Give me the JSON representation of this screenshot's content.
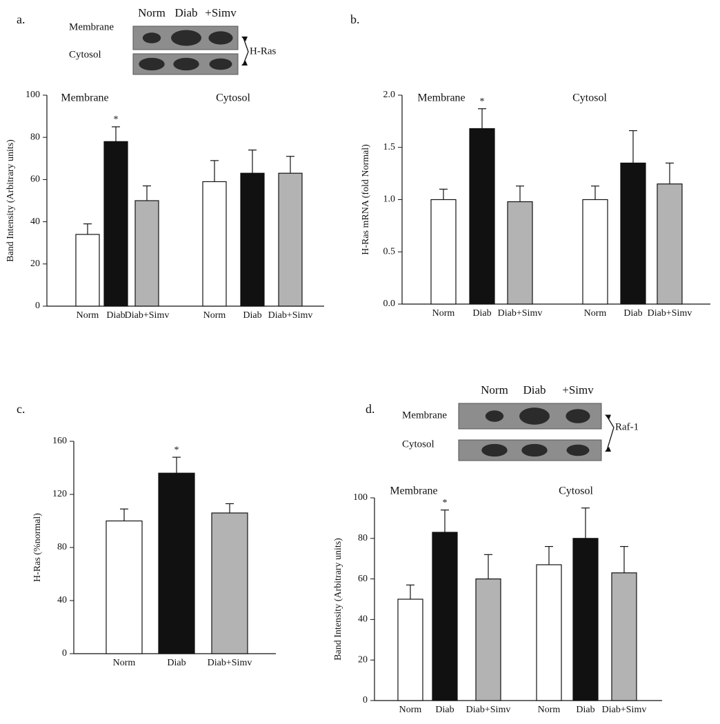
{
  "chart_data": [
    {
      "type": "bar",
      "panel": "a.",
      "blot": {
        "columns": [
          "Norm",
          "Diab",
          "+Simv"
        ],
        "rows": [
          "Membrane",
          "Cytosol"
        ],
        "target": "H-Ras"
      },
      "ylabel": "Band Intensity (Arbitrary units)",
      "categories": [
        "Membrane",
        "Cytosol"
      ],
      "series": [
        {
          "name": "Norm",
          "color": "#ffffff",
          "values": [
            34,
            59
          ],
          "errors": [
            5,
            10
          ]
        },
        {
          "name": "Diab",
          "color": "#111111",
          "values": [
            78,
            63
          ],
          "errors": [
            7,
            11
          ],
          "markers": [
            "*",
            null
          ]
        },
        {
          "name": "Diab+Simv",
          "color": "#b3b3b3",
          "values": [
            50,
            63
          ],
          "errors": [
            7,
            8
          ]
        }
      ],
      "ylim": [
        0,
        100
      ],
      "yticks": [
        0,
        20,
        40,
        60,
        80,
        100
      ]
    },
    {
      "type": "bar",
      "panel": "b.",
      "ylabel": "H-Ras mRNA (fold Normal)",
      "categories": [
        "Membrane",
        "Cytosol"
      ],
      "series": [
        {
          "name": "Norm",
          "color": "#ffffff",
          "values": [
            1.0,
            1.0
          ],
          "errors": [
            0.1,
            0.13
          ]
        },
        {
          "name": "Diab",
          "color": "#111111",
          "values": [
            1.68,
            1.35
          ],
          "errors": [
            0.19,
            0.31
          ],
          "markers": [
            "*",
            null
          ]
        },
        {
          "name": "Diab+Simv",
          "color": "#b3b3b3",
          "values": [
            0.98,
            1.15
          ],
          "errors": [
            0.15,
            0.2
          ]
        }
      ],
      "ylim": [
        0,
        2
      ],
      "yticks": [
        {
          "value": 0,
          "label": "0.0"
        },
        {
          "value": 0.5,
          "label": "0.5"
        },
        {
          "value": 1,
          "label": "1.0"
        },
        {
          "value": 1.5,
          "label": "1.5"
        },
        {
          "value": 2,
          "label": "2.0"
        }
      ]
    },
    {
      "type": "bar",
      "panel": "c.",
      "ylabel": "H-Ras (%normal)",
      "categories": [
        null
      ],
      "series": [
        {
          "name": "Norm",
          "color": "#ffffff",
          "values": [
            100
          ],
          "errors": [
            9
          ]
        },
        {
          "name": "Diab",
          "color": "#111111",
          "values": [
            136
          ],
          "errors": [
            12
          ],
          "markers": [
            "*"
          ]
        },
        {
          "name": "Diab+Simv",
          "color": "#b3b3b3",
          "values": [
            106
          ],
          "errors": [
            7
          ]
        }
      ],
      "ylim": [
        0,
        160
      ],
      "yticks": [
        0,
        40,
        80,
        120,
        160
      ]
    },
    {
      "type": "bar",
      "panel": "d.",
      "blot": {
        "columns": [
          "Norm",
          "Diab",
          "+Simv"
        ],
        "rows": [
          "Membrane",
          "Cytosol"
        ],
        "target": "Raf-1"
      },
      "ylabel": "Band Intensity (Arbitrary units)",
      "categories": [
        "Membrane",
        "Cytosol"
      ],
      "series": [
        {
          "name": "Norm",
          "color": "#ffffff",
          "values": [
            50,
            67
          ],
          "errors": [
            7,
            9
          ]
        },
        {
          "name": "Diab",
          "color": "#111111",
          "values": [
            83,
            80
          ],
          "errors": [
            11,
            15
          ],
          "markers": [
            "*",
            null
          ]
        },
        {
          "name": "Diab+Simv",
          "color": "#b3b3b3",
          "values": [
            60,
            63
          ],
          "errors": [
            12,
            13
          ]
        }
      ],
      "ylim": [
        0,
        100
      ],
      "yticks": [
        0,
        20,
        40,
        60,
        80,
        100
      ]
    }
  ]
}
